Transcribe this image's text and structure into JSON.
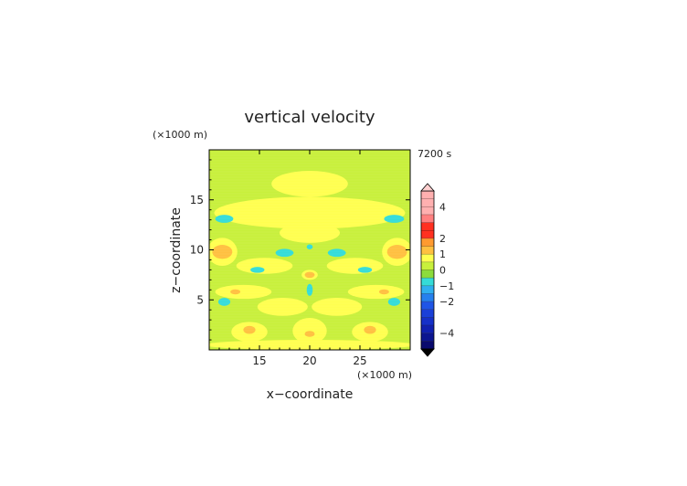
{
  "chart_data": {
    "type": "heatmap",
    "title": "vertical velocity",
    "xlabel": "x−coordinate",
    "ylabel": "z−coordinate",
    "x_unit": "(×1000 m)",
    "y_unit": "(×1000 m)",
    "time_label": "7200 s",
    "xlim": [
      10,
      30
    ],
    "ylim": [
      0,
      20
    ],
    "x_ticks": [
      15,
      20,
      25
    ],
    "y_ticks": [
      5,
      10,
      15
    ],
    "x_tick_labels": [
      "15",
      "20",
      "25"
    ],
    "y_tick_labels": [
      "5",
      "10",
      "15"
    ],
    "colorbar": {
      "range": [
        -5,
        5
      ],
      "tick_values": [
        4,
        2,
        1,
        0,
        -1,
        -2,
        -4
      ],
      "tick_labels": [
        "4",
        "2",
        "1",
        "0",
        "−1",
        "−2",
        "−4"
      ],
      "levels": [
        {
          "from": -5.0,
          "to": -4.5,
          "color": "#0a0a6e"
        },
        {
          "from": -4.5,
          "to": -4.0,
          "color": "#0c1590"
        },
        {
          "from": -4.0,
          "to": -3.5,
          "color": "#1020b0"
        },
        {
          "from": -3.5,
          "to": -3.0,
          "color": "#1530c8"
        },
        {
          "from": -3.0,
          "to": -2.5,
          "color": "#1a40d8"
        },
        {
          "from": -2.5,
          "to": -2.0,
          "color": "#1f55e6"
        },
        {
          "from": -2.0,
          "to": -1.5,
          "color": "#2680ee"
        },
        {
          "from": -1.5,
          "to": -1.0,
          "color": "#30b0f0"
        },
        {
          "from": -1.0,
          "to": -0.5,
          "color": "#35dcd8"
        },
        {
          "from": -0.5,
          "to": 0.0,
          "color": "#8cdc3c"
        },
        {
          "from": 0.0,
          "to": 0.5,
          "color": "#c8f03c"
        },
        {
          "from": 0.5,
          "to": 1.0,
          "color": "#ffff50"
        },
        {
          "from": 1.0,
          "to": 1.5,
          "color": "#ffc040"
        },
        {
          "from": 1.5,
          "to": 2.0,
          "color": "#ff9a30"
        },
        {
          "from": 2.0,
          "to": 3.0,
          "color": "#ff3020"
        },
        {
          "from": 3.0,
          "to": 3.5,
          "color": "#ff8080"
        },
        {
          "from": 3.5,
          "to": 5.0,
          "color": "#ffb0b0"
        }
      ],
      "under_color": "#000000",
      "over_color": "#ffd0d0"
    },
    "background_value": 0.2,
    "features": [
      {
        "x": 20,
        "y": 16.6,
        "rx": 3.8,
        "ry": 1.3,
        "value": 0.7
      },
      {
        "x": 20,
        "y": 13.7,
        "rx": 9.5,
        "ry": 1.6,
        "value": 0.7
      },
      {
        "x": 20,
        "y": 11.7,
        "rx": 3.0,
        "ry": 1.0,
        "value": 0.7
      },
      {
        "x": 11.5,
        "y": 13.1,
        "rx": 0.9,
        "ry": 0.4,
        "value": -0.7
      },
      {
        "x": 28.4,
        "y": 13.1,
        "rx": 1.0,
        "ry": 0.4,
        "value": -0.7
      },
      {
        "x": 11.3,
        "y": 9.8,
        "rx": 1.5,
        "ry": 1.4,
        "value": 0.7
      },
      {
        "x": 11.3,
        "y": 9.8,
        "rx": 1.0,
        "ry": 0.7,
        "value": 1.2
      },
      {
        "x": 28.7,
        "y": 9.8,
        "rx": 1.5,
        "ry": 1.4,
        "value": 0.7
      },
      {
        "x": 28.7,
        "y": 9.8,
        "rx": 1.0,
        "ry": 0.7,
        "value": 1.2
      },
      {
        "x": 17.5,
        "y": 9.7,
        "rx": 0.9,
        "ry": 0.4,
        "value": -0.7
      },
      {
        "x": 22.7,
        "y": 9.7,
        "rx": 0.9,
        "ry": 0.4,
        "value": -0.7
      },
      {
        "x": 20,
        "y": 10.3,
        "rx": 0.3,
        "ry": 0.25,
        "value": -0.7
      },
      {
        "x": 15.5,
        "y": 8.4,
        "rx": 2.8,
        "ry": 0.8,
        "value": 0.7
      },
      {
        "x": 24.5,
        "y": 8.4,
        "rx": 2.8,
        "ry": 0.8,
        "value": 0.7
      },
      {
        "x": 14.8,
        "y": 8.0,
        "rx": 0.7,
        "ry": 0.3,
        "value": -0.7
      },
      {
        "x": 25.5,
        "y": 8.0,
        "rx": 0.7,
        "ry": 0.3,
        "value": -0.7
      },
      {
        "x": 20,
        "y": 7.5,
        "rx": 0.8,
        "ry": 0.5,
        "value": 0.7
      },
      {
        "x": 20,
        "y": 7.5,
        "rx": 0.5,
        "ry": 0.3,
        "value": 1.2
      },
      {
        "x": 20,
        "y": 6.0,
        "rx": 0.3,
        "ry": 0.6,
        "value": -0.7
      },
      {
        "x": 13.4,
        "y": 5.8,
        "rx": 2.8,
        "ry": 0.7,
        "value": 0.7
      },
      {
        "x": 26.6,
        "y": 5.8,
        "rx": 2.8,
        "ry": 0.7,
        "value": 0.7
      },
      {
        "x": 12.6,
        "y": 5.8,
        "rx": 0.5,
        "ry": 0.25,
        "value": 1.2
      },
      {
        "x": 27.4,
        "y": 5.8,
        "rx": 0.5,
        "ry": 0.25,
        "value": 1.2
      },
      {
        "x": 11.5,
        "y": 4.8,
        "rx": 0.6,
        "ry": 0.4,
        "value": -0.7
      },
      {
        "x": 28.4,
        "y": 4.8,
        "rx": 0.6,
        "ry": 0.4,
        "value": -0.7
      },
      {
        "x": 17.3,
        "y": 4.3,
        "rx": 2.5,
        "ry": 0.9,
        "value": 0.7
      },
      {
        "x": 22.7,
        "y": 4.3,
        "rx": 2.5,
        "ry": 0.9,
        "value": 0.7
      },
      {
        "x": 14.0,
        "y": 1.8,
        "rx": 1.8,
        "ry": 1.0,
        "value": 0.7
      },
      {
        "x": 26.0,
        "y": 1.8,
        "rx": 1.8,
        "ry": 1.0,
        "value": 0.7
      },
      {
        "x": 14.0,
        "y": 2.0,
        "rx": 0.6,
        "ry": 0.4,
        "value": 1.2
      },
      {
        "x": 26.0,
        "y": 2.0,
        "rx": 0.6,
        "ry": 0.4,
        "value": 1.2
      },
      {
        "x": 20,
        "y": 1.9,
        "rx": 1.7,
        "ry": 1.3,
        "value": 0.7
      },
      {
        "x": 20,
        "y": 1.6,
        "rx": 0.5,
        "ry": 0.3,
        "value": 1.2
      },
      {
        "x": 20,
        "y": 0.5,
        "rx": 10.5,
        "ry": 0.5,
        "value": 0.7
      }
    ]
  }
}
